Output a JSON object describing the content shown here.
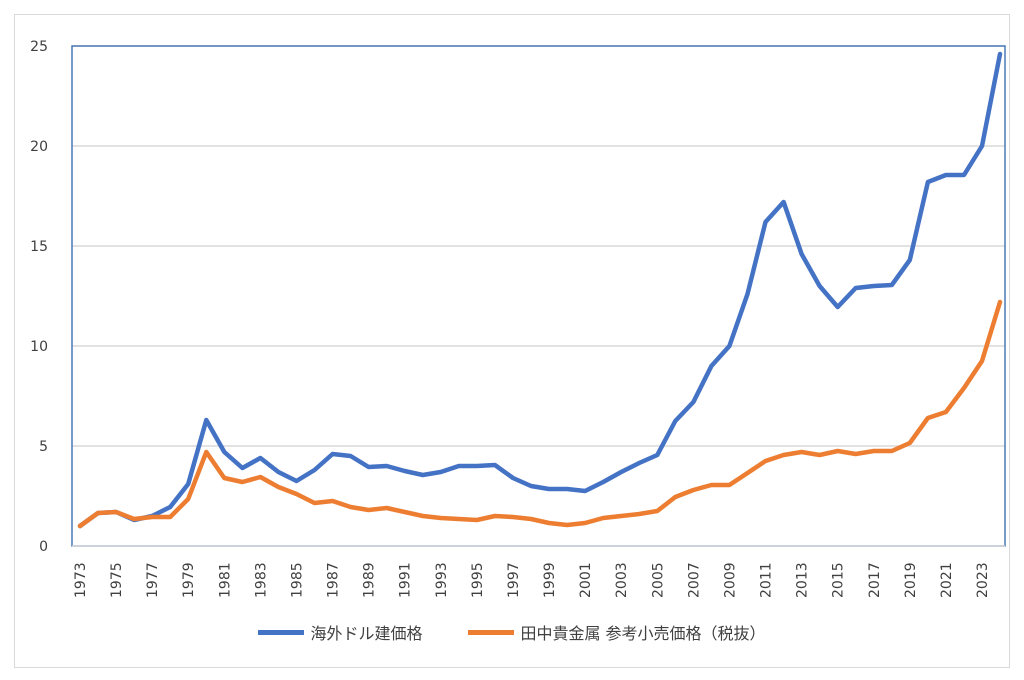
{
  "chart_data": {
    "type": "line",
    "title": "",
    "xlabel": "",
    "ylabel": "",
    "ylim": [
      0,
      25
    ],
    "yticks": [
      0,
      5,
      10,
      15,
      20,
      25
    ],
    "grid": true,
    "legend_position": "bottom",
    "x": [
      1973,
      1974,
      1975,
      1976,
      1977,
      1978,
      1979,
      1980,
      1981,
      1982,
      1983,
      1984,
      1985,
      1986,
      1987,
      1988,
      1989,
      1990,
      1991,
      1992,
      1993,
      1994,
      1995,
      1996,
      1997,
      1998,
      1999,
      2000,
      2001,
      2002,
      2003,
      2004,
      2005,
      2006,
      2007,
      2008,
      2009,
      2010,
      2011,
      2012,
      2013,
      2014,
      2015,
      2016,
      2017,
      2018,
      2019,
      2020,
      2021,
      2022,
      2023,
      2024
    ],
    "series": [
      {
        "name": "海外ドル建価格",
        "color": "#4472c4",
        "values": [
          1.0,
          1.65,
          1.7,
          1.3,
          1.5,
          1.95,
          3.1,
          6.3,
          4.7,
          3.9,
          4.4,
          3.7,
          3.25,
          3.8,
          4.6,
          4.5,
          3.95,
          4.0,
          3.75,
          3.55,
          3.7,
          4.0,
          4.0,
          4.05,
          3.4,
          3.0,
          2.85,
          2.85,
          2.75,
          3.2,
          3.7,
          4.15,
          4.55,
          6.25,
          7.2,
          9.0,
          10.0,
          12.6,
          16.2,
          17.2,
          14.6,
          13.0,
          11.95,
          12.9,
          13.0,
          13.05,
          14.3,
          18.2,
          18.55,
          18.55,
          20.0,
          24.6
        ]
      },
      {
        "name": "田中貴金属 参考小売価格（税抜）",
        "color": "#ed7d31",
        "values": [
          1.0,
          1.65,
          1.7,
          1.35,
          1.45,
          1.45,
          2.35,
          4.7,
          3.4,
          3.2,
          3.45,
          2.95,
          2.6,
          2.15,
          2.25,
          1.95,
          1.8,
          1.9,
          1.7,
          1.5,
          1.4,
          1.35,
          1.3,
          1.5,
          1.45,
          1.35,
          1.15,
          1.05,
          1.15,
          1.4,
          1.5,
          1.6,
          1.75,
          2.45,
          2.8,
          3.05,
          3.05,
          3.65,
          4.25,
          4.55,
          4.7,
          4.55,
          4.75,
          4.6,
          4.75,
          4.75,
          5.15,
          6.4,
          6.7,
          7.9,
          9.25,
          12.2
        ]
      }
    ]
  }
}
